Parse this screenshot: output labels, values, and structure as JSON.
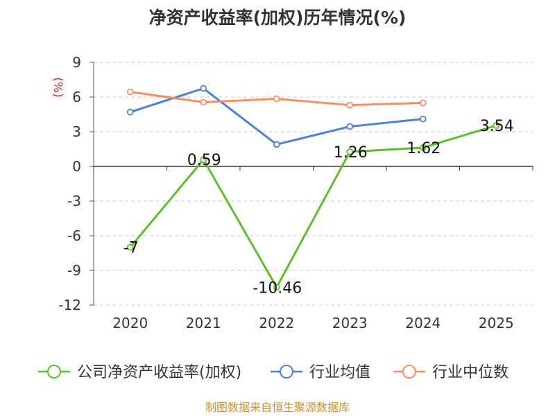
{
  "chart_data": {
    "type": "line",
    "title": "净资产收益率(加权)历年情况(%)",
    "ylabel": "(%)",
    "xlabel": "",
    "categories": [
      "2020",
      "2021",
      "2022",
      "2023",
      "2024",
      "2025"
    ],
    "ylim": [
      -12,
      9
    ],
    "yticks": [
      9,
      6,
      3,
      0,
      -3,
      -6,
      -9,
      -12
    ],
    "grid": true,
    "legend_position": "bottom",
    "series": [
      {
        "name": "公司净资产收益率(加权)",
        "color": "#5cbf2a",
        "values": [
          -7,
          0.59,
          -10.46,
          1.26,
          1.62,
          3.54
        ],
        "labels": [
          "-7",
          "0.59",
          "-10.46",
          "1.26",
          "1.62",
          "3.54"
        ]
      },
      {
        "name": "行业均值",
        "color": "#4e7fd9",
        "values": [
          4.7,
          6.75,
          1.9,
          3.45,
          4.1,
          null
        ],
        "labels": []
      },
      {
        "name": "行业中位数",
        "color": "#f78e5d",
        "values": [
          6.45,
          5.55,
          5.85,
          5.3,
          5.5,
          null
        ],
        "labels": []
      }
    ]
  },
  "source": "制图数据来自恒生聚源数据库"
}
